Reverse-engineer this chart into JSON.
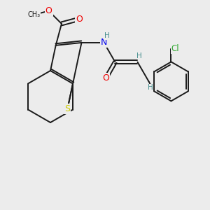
{
  "background_color": "#ececec",
  "bond_color": "#1a1a1a",
  "atom_colors": {
    "S": "#cccc00",
    "N": "#0000ee",
    "O": "#ee0000",
    "Cl": "#33aa33",
    "H": "#4a9090",
    "C": "#1a1a1a"
  },
  "figsize": [
    3.0,
    3.0
  ],
  "dpi": 100
}
